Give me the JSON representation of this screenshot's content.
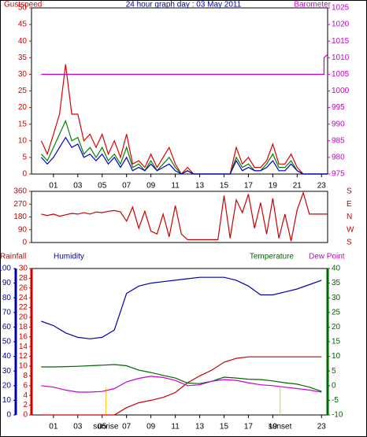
{
  "chart_data": [
    {
      "type": "line",
      "title": "24 hour graph day : 03 May 2011",
      "left_label": "Gustspeed",
      "right_label": "Barometer",
      "x": [
        0,
        0.5,
        1,
        1.5,
        2,
        2.5,
        3,
        3.5,
        4,
        4.5,
        5,
        5.5,
        6,
        6.5,
        7,
        7.5,
        8,
        8.5,
        9,
        9.5,
        10,
        10.5,
        11,
        11.5,
        12,
        12.5,
        13,
        13.5,
        14,
        14.5,
        15,
        15.5,
        16,
        16.5,
        17,
        17.5,
        18,
        18.5,
        19,
        19.5,
        20,
        20.5,
        21,
        21.5,
        22,
        22.5,
        23,
        23.5
      ],
      "xlim": [
        -0.8,
        23.5
      ],
      "xticks": [
        {
          "value": 1,
          "label": "01"
        },
        {
          "value": 3,
          "label": "03"
        },
        {
          "value": 5,
          "label": "05"
        },
        {
          "value": 7,
          "label": "07"
        },
        {
          "value": 9,
          "label": "09"
        },
        {
          "value": 11,
          "label": "11"
        },
        {
          "value": 13,
          "label": "13"
        },
        {
          "value": 15,
          "label": "15"
        },
        {
          "value": 17,
          "label": "17"
        },
        {
          "value": 19,
          "label": "19"
        },
        {
          "value": 21,
          "label": "21"
        },
        {
          "value": 23,
          "label": "23"
        }
      ],
      "ylim": [
        0,
        50
      ],
      "yticks": [
        0,
        5,
        10,
        15,
        20,
        25,
        30,
        35,
        40,
        45,
        50
      ],
      "y2lim": [
        975,
        1025
      ],
      "y2ticks": [
        975,
        980,
        985,
        990,
        995,
        1000,
        1005,
        1010,
        1015,
        1020,
        1025
      ],
      "series": [
        {
          "name": "Gustspeed",
          "color": "#dd0000",
          "values": [
            10,
            6,
            12,
            18,
            33,
            18,
            18,
            10,
            12,
            8,
            12,
            6,
            10,
            5,
            12,
            3,
            4,
            2,
            6,
            2,
            5,
            8,
            3,
            0,
            2,
            0,
            0,
            0,
            0,
            0,
            0,
            0,
            8,
            3,
            5,
            2,
            2,
            4,
            9,
            3,
            3,
            6,
            2,
            0,
            0,
            0,
            0,
            0
          ]
        },
        {
          "color": "#008000",
          "values": [
            6,
            4,
            8,
            12,
            16,
            10,
            11,
            6,
            8,
            5,
            8,
            4,
            6,
            3,
            8,
            2,
            3,
            1,
            4,
            1,
            3,
            5,
            2,
            0,
            1,
            0,
            0,
            0,
            0,
            0,
            0,
            0,
            5,
            2,
            3,
            1,
            1,
            3,
            6,
            2,
            2,
            4,
            1,
            0,
            0,
            0,
            0,
            0
          ]
        },
        {
          "color": "#0000cc",
          "values": [
            5,
            3,
            5,
            8,
            11,
            8,
            9,
            5,
            6,
            4,
            6,
            3,
            5,
            2,
            5,
            1,
            2,
            1,
            3,
            1,
            2,
            3,
            1,
            0,
            1,
            0,
            0,
            0,
            0,
            0,
            0,
            0,
            4,
            1,
            2,
            1,
            1,
            2,
            4,
            1,
            1,
            3,
            1,
            0,
            0,
            0,
            0,
            0
          ]
        },
        {
          "name": "Barometer",
          "color": "#cc00cc",
          "axis": "y2",
          "x": [
            0,
            23.2,
            23.2,
            23.5
          ],
          "values": [
            1005,
            1005,
            1010,
            1011
          ]
        }
      ]
    },
    {
      "type": "line",
      "x": [
        0,
        0.5,
        1,
        1.5,
        2,
        2.5,
        3,
        3.5,
        4,
        4.5,
        5,
        5.5,
        6,
        6.5,
        7,
        7.5,
        8,
        8.5,
        9,
        9.5,
        10,
        10.5,
        11,
        11.5,
        12,
        12.5,
        13,
        13.5,
        14,
        14.5,
        15,
        15.5,
        16,
        16.5,
        17,
        17.5,
        18,
        18.5,
        19,
        19.5,
        20,
        20.5,
        21,
        21.5,
        22,
        22.5,
        23,
        23.5
      ],
      "xlim": [
        -0.8,
        23.5
      ],
      "ylim": [
        0,
        360
      ],
      "yticks": [
        0,
        90,
        180,
        270,
        360
      ],
      "right_labels": [
        "S",
        "E",
        "N",
        "W",
        "S"
      ],
      "series": [
        {
          "color": "#cc0000",
          "values": [
            200,
            190,
            200,
            185,
            195,
            205,
            200,
            210,
            200,
            215,
            210,
            220,
            225,
            215,
            150,
            250,
            100,
            220,
            80,
            60,
            200,
            40,
            260,
            60,
            20,
            20,
            20,
            20,
            20,
            20,
            330,
            30,
            300,
            210,
            340,
            100,
            280,
            60,
            310,
            30,
            200,
            10,
            230,
            350,
            200,
            200,
            200,
            200
          ]
        }
      ]
    },
    {
      "type": "line",
      "x": [
        0,
        1,
        2,
        3,
        4,
        5,
        6,
        7,
        8,
        9,
        10,
        11,
        12,
        13,
        14,
        15,
        16,
        17,
        18,
        19,
        20,
        21,
        22,
        23
      ],
      "xlim": [
        -0.8,
        23.5
      ],
      "xticks": [
        {
          "value": 1,
          "label": "01"
        },
        {
          "value": 3,
          "label": "03"
        },
        {
          "value": 5,
          "label": "05"
        },
        {
          "value": 7,
          "label": "07"
        },
        {
          "value": 9,
          "label": "09"
        },
        {
          "value": 11,
          "label": "11"
        },
        {
          "value": 13,
          "label": "13"
        },
        {
          "value": 15,
          "label": "15"
        },
        {
          "value": 17,
          "label": "17"
        },
        {
          "value": 19,
          "label": "19"
        },
        {
          "value": 23,
          "label": "23"
        }
      ],
      "ylim": [
        0,
        30
      ],
      "yticks": [
        0,
        2,
        4,
        6,
        8,
        10,
        12,
        14,
        16,
        18,
        20,
        22,
        24,
        26,
        28,
        30
      ],
      "y2lim": [
        -10,
        40
      ],
      "y2ticks": [
        -10,
        -5,
        0,
        5,
        10,
        15,
        20,
        25,
        30,
        35,
        40
      ],
      "y3lim": [
        0,
        100
      ],
      "y3ticks": [
        0,
        10,
        20,
        30,
        40,
        50,
        60,
        70,
        80,
        90,
        100
      ],
      "annotations": [
        {
          "text": "sunrise",
          "x": 5.3
        },
        {
          "text": "sunset",
          "x": 19.6
        }
      ],
      "series": [
        {
          "name": "Rainfall",
          "color": "#cc0000",
          "values": [
            0,
            0,
            0,
            0,
            0,
            0,
            0,
            1.5,
            2.5,
            3,
            3.6,
            4.6,
            6.6,
            8,
            9.2,
            10.8,
            11.6,
            11.9,
            11.9,
            11.9,
            11.9,
            11.9,
            11.9,
            11.9
          ]
        },
        {
          "name": "Humidity",
          "color": "#0000aa",
          "axis": "y3",
          "values": [
            64,
            61,
            56,
            53,
            52,
            53,
            58,
            83,
            88,
            90,
            91,
            92,
            93,
            94,
            94,
            94,
            92,
            88,
            82,
            82,
            84,
            86,
            89,
            92
          ]
        },
        {
          "name": "Temperature",
          "color": "#006600",
          "axis": "y2",
          "values": [
            6.4,
            6.4,
            6.5,
            6.6,
            6.8,
            7,
            7.2,
            6.8,
            5.3,
            4.5,
            3.5,
            2.6,
            0.9,
            0.7,
            1.5,
            2.9,
            2.6,
            2.2,
            2.1,
            1.6,
            1,
            0.5,
            -0.5,
            -1.9
          ]
        },
        {
          "name": "Dew Point",
          "color": "#cc00cc",
          "axis": "y2",
          "values": [
            0,
            -0.5,
            -1.5,
            -2.2,
            -2.2,
            -2,
            -1,
            1.3,
            2.5,
            3.2,
            2.8,
            1.8,
            0,
            0.3,
            1.5,
            2.1,
            1.8,
            1,
            0.3,
            0,
            -0.5,
            -1,
            -1.5,
            -2.2
          ]
        }
      ]
    }
  ]
}
